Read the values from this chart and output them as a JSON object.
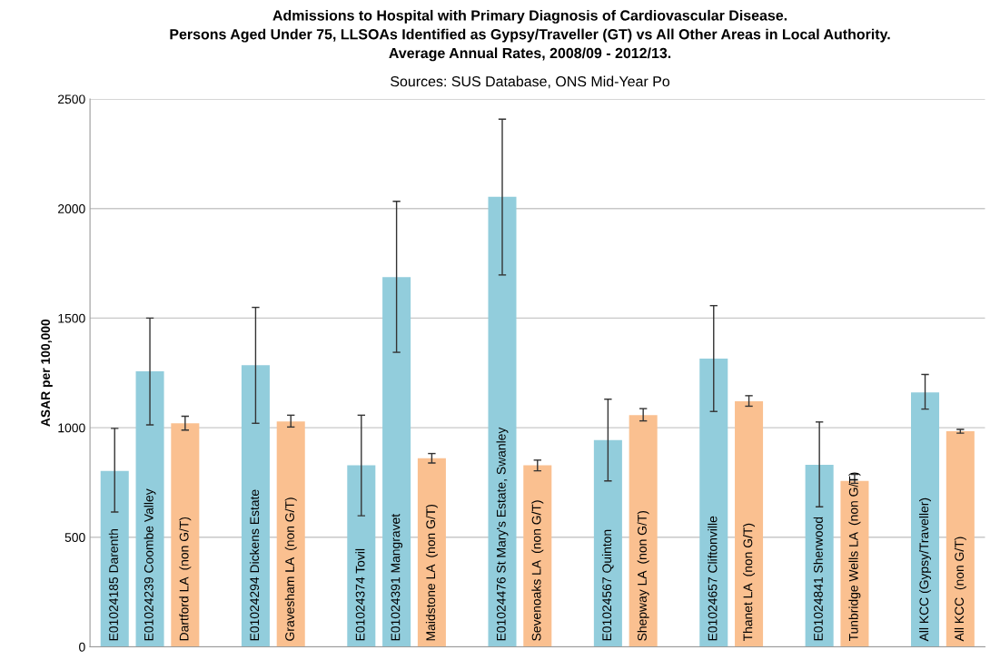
{
  "chart_data": {
    "type": "bar",
    "title": "Admissions to Hospital with Primary Diagnosis of Cardiovascular Disease.\nPersons Aged Under 75, LLSOAs Identified as Gypsy/Traveller (GT) vs All Other Areas in Local Authority.\nAverage Annual Rates, 2008/09 - 2012/13.",
    "subtitle": "Sources: SUS Database, ONS Mid-Year Po",
    "ylabel": "ASAR per 100,000",
    "categories": [
      "E01024185 Darenth",
      "E01024239 Coombe Valley",
      "Dartford LA  (non G/T)",
      null,
      "E01024294 Dickens Estate",
      "Gravesham LA  (non G/T)",
      null,
      "E01024374 Tovil",
      "E01024391 Mangravet",
      "Maidstone LA  (non G/T)",
      null,
      "E01024476 St Mary's Estate, Swanley",
      "Sevenoaks LA  (non G/T)",
      null,
      "E01024567 Quinton",
      "Shepway LA  (non G/T)",
      null,
      "E01024657 Cliftonville",
      "Thanet LA  (non G/T)",
      null,
      "E01024841 Sherwood",
      "Tunbridge Wells LA  (non G/T)",
      null,
      "All KCC (Gypsy/Traveller)",
      "All KCC  (non G/T)"
    ],
    "values": [
      803,
      1257,
      1020,
      null,
      1285,
      1028,
      null,
      828,
      1687,
      861,
      null,
      2054,
      828,
      null,
      943,
      1057,
      null,
      1315,
      1121,
      null,
      831,
      757,
      null,
      1161,
      984
    ],
    "errors": [
      [
        615,
        997
      ],
      [
        1013,
        1500
      ],
      [
        989,
        1052
      ],
      null,
      [
        1020,
        1549
      ],
      [
        1003,
        1057
      ],
      null,
      [
        598,
        1057
      ],
      [
        1344,
        2033
      ],
      [
        839,
        882
      ],
      null,
      [
        1697,
        2408
      ],
      [
        803,
        852
      ],
      null,
      [
        757,
        1130
      ],
      [
        1031,
        1087
      ],
      null,
      [
        1074,
        1557
      ],
      [
        1098,
        1146
      ],
      null,
      [
        639,
        1026
      ],
      [
        746,
        787
      ],
      null,
      [
        1085,
        1243
      ],
      [
        975,
        992
      ]
    ],
    "colors": [
      "#92cddc",
      "#92cddc",
      "#fac090",
      null,
      "#92cddc",
      "#fac090",
      null,
      "#92cddc",
      "#92cddc",
      "#fac090",
      null,
      "#92cddc",
      "#fac090",
      null,
      "#92cddc",
      "#fac090",
      null,
      "#92cddc",
      "#fac090",
      null,
      "#92cddc",
      "#fac090",
      null,
      "#92cddc",
      "#fac090"
    ],
    "ylim": [
      0,
      2500
    ],
    "yticks": [
      0,
      500,
      1000,
      1500,
      2000,
      2500
    ],
    "grid": "y"
  }
}
